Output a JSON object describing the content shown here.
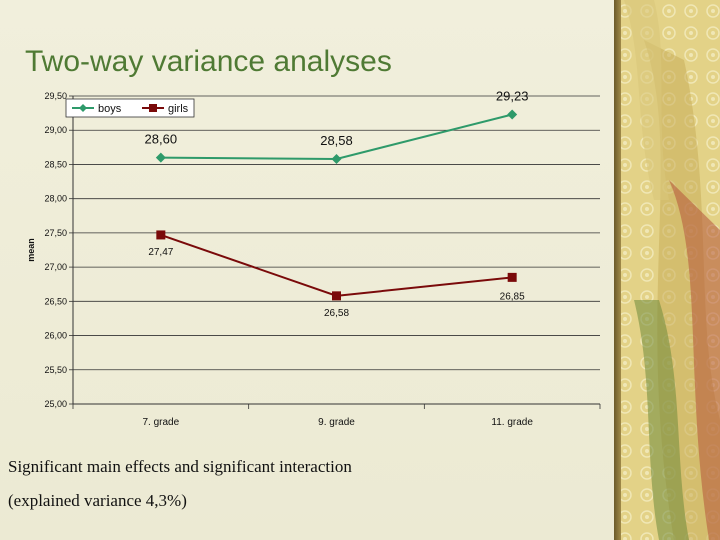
{
  "slide": {
    "title": "Two-way variance analyses",
    "caption_line1": "Significant main effects and significant interaction",
    "caption_line2": "(explained variance 4,3%)"
  },
  "colors": {
    "title": "#4f7a34",
    "boys": "#2e9a6a",
    "girls": "#7a0a0a",
    "grid": "#333333",
    "background": "#efedd9"
  },
  "chart_data": {
    "type": "line",
    "title": "",
    "xlabel": "",
    "ylabel": "mean",
    "categories": [
      "7. grade",
      "9. grade",
      "11. grade"
    ],
    "ylim": [
      25.0,
      29.5
    ],
    "yticks": [
      "25,00",
      "25,50",
      "26,00",
      "26,50",
      "27,00",
      "27,50",
      "28,00",
      "28,50",
      "29,00",
      "29,50"
    ],
    "grid": true,
    "legend_position": "top-left",
    "series": [
      {
        "name": "boys",
        "values": [
          28.6,
          28.58,
          29.23
        ],
        "labels": [
          "28,60",
          "28,58",
          "29,23"
        ],
        "color": "#2e9a6a",
        "marker": "diamond"
      },
      {
        "name": "girls",
        "values": [
          27.47,
          26.58,
          26.85
        ],
        "labels": [
          "27,47",
          "26,58",
          "26,85"
        ],
        "color": "#7a0a0a",
        "marker": "square"
      }
    ]
  }
}
